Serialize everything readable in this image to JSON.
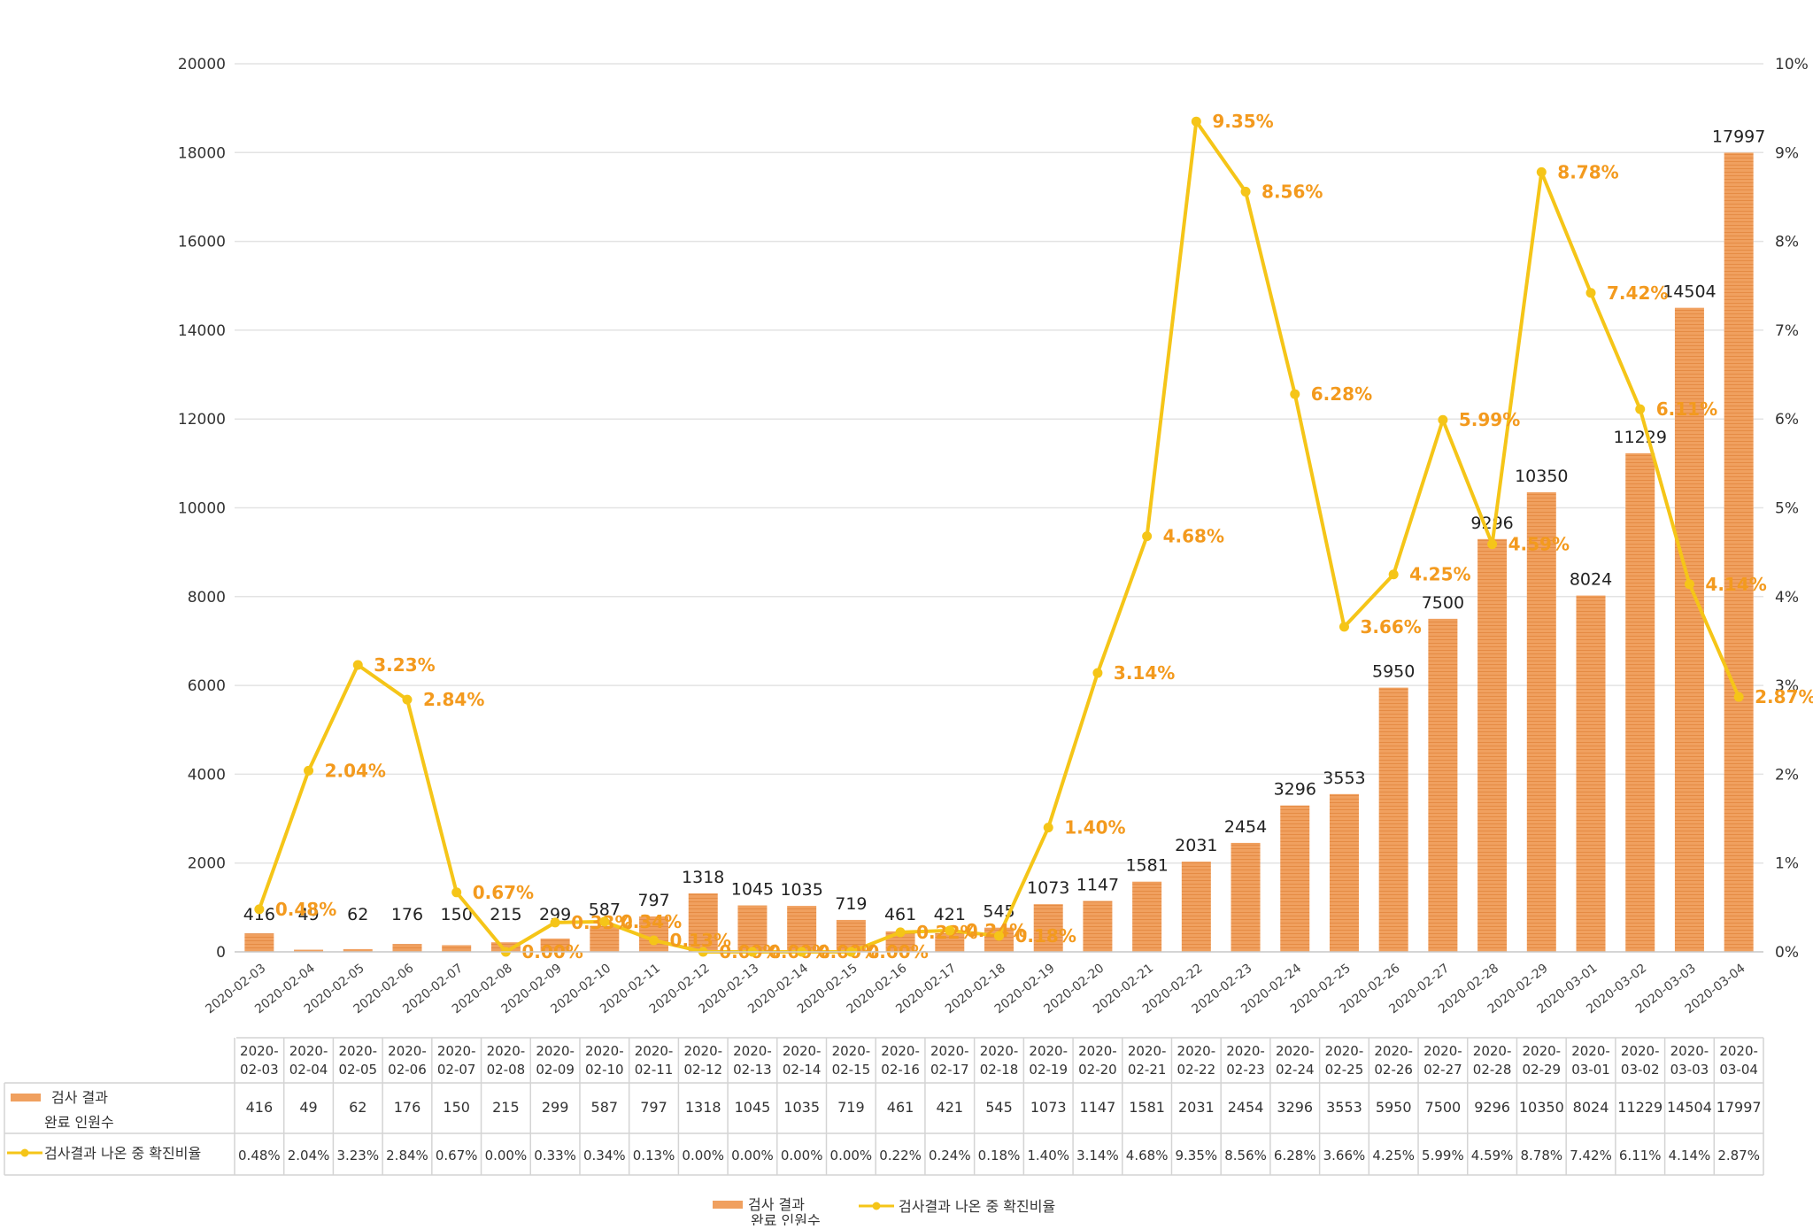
{
  "chart_data": {
    "type": "bar+line",
    "categories": [
      "2020-02-03",
      "2020-02-04",
      "2020-02-05",
      "2020-02-06",
      "2020-02-07",
      "2020-02-08",
      "2020-02-09",
      "2020-02-10",
      "2020-02-11",
      "2020-02-12",
      "2020-02-13",
      "2020-02-14",
      "2020-02-15",
      "2020-02-16",
      "2020-02-17",
      "2020-02-18",
      "2020-02-19",
      "2020-02-20",
      "2020-02-21",
      "2020-02-22",
      "2020-02-23",
      "2020-02-24",
      "2020-02-25",
      "2020-02-26",
      "2020-02-27",
      "2020-02-28",
      "2020-02-29",
      "2020-03-01",
      "2020-03-02",
      "2020-03-03",
      "2020-03-04"
    ],
    "series": [
      {
        "name": "검사 결과 완료 인원수",
        "name_line1": "검사 결과",
        "name_line2": "완료 인원수",
        "type": "bar",
        "axis": "left",
        "color": "#f0a05f",
        "values": [
          416,
          49,
          62,
          176,
          150,
          215,
          299,
          587,
          797,
          1318,
          1045,
          1035,
          719,
          461,
          421,
          545,
          1073,
          1147,
          1581,
          2031,
          2454,
          3296,
          3553,
          5950,
          7500,
          9296,
          10350,
          8024,
          11229,
          14504,
          17997
        ],
        "labels": [
          "416",
          "49",
          "62",
          "176",
          "150",
          "215",
          "299",
          "587",
          "797",
          "1318",
          "1045",
          "1035",
          "719",
          "461",
          "421",
          "545",
          "1073",
          "1147",
          "1581",
          "2031",
          "2454",
          "3296",
          "3553",
          "5950",
          "7500",
          "9296",
          "10350",
          "8024",
          "11229",
          "14504",
          "17997"
        ]
      },
      {
        "name": "검사결과 나온 중 확진비율",
        "type": "line",
        "axis": "right",
        "color": "#f5c518",
        "label_color": "#f39a1e",
        "values": [
          0.48,
          2.04,
          3.23,
          2.84,
          0.67,
          0.0,
          0.33,
          0.34,
          0.13,
          0.0,
          0.0,
          0.0,
          0.0,
          0.22,
          0.24,
          0.18,
          1.4,
          3.14,
          4.68,
          9.35,
          8.56,
          6.28,
          3.66,
          4.25,
          5.99,
          4.59,
          8.78,
          7.42,
          6.11,
          4.14,
          2.87
        ],
        "labels": [
          "0.48%",
          "2.04%",
          "3.23%",
          "2.84%",
          "0.67%",
          "0.00%",
          "0.33%",
          "0.34%",
          "0.13%",
          "0.00%",
          "0.00%",
          "0.00%",
          "0.00%",
          "0.22%",
          "0.24%",
          "0.18%",
          "1.40%",
          "3.14%",
          "4.68%",
          "9.35%",
          "8.56%",
          "6.28%",
          "3.66%",
          "4.25%",
          "5.99%",
          "4.59%",
          "8.78%",
          "7.42%",
          "6.11%",
          "4.14%",
          "2.87%"
        ]
      }
    ],
    "y_left": {
      "min": 0,
      "max": 20000,
      "ticks": [
        "0",
        "2000",
        "4000",
        "6000",
        "8000",
        "10000",
        "12000",
        "14000",
        "16000",
        "18000",
        "20000"
      ]
    },
    "y_right": {
      "min": 0,
      "max": 10,
      "ticks": [
        "0%",
        "1%",
        "2%",
        "3%",
        "4%",
        "5%",
        "6%",
        "7%",
        "8%",
        "9%",
        "10%"
      ]
    },
    "grid": true,
    "legend_placement": "bottom-center",
    "data_table": true
  }
}
